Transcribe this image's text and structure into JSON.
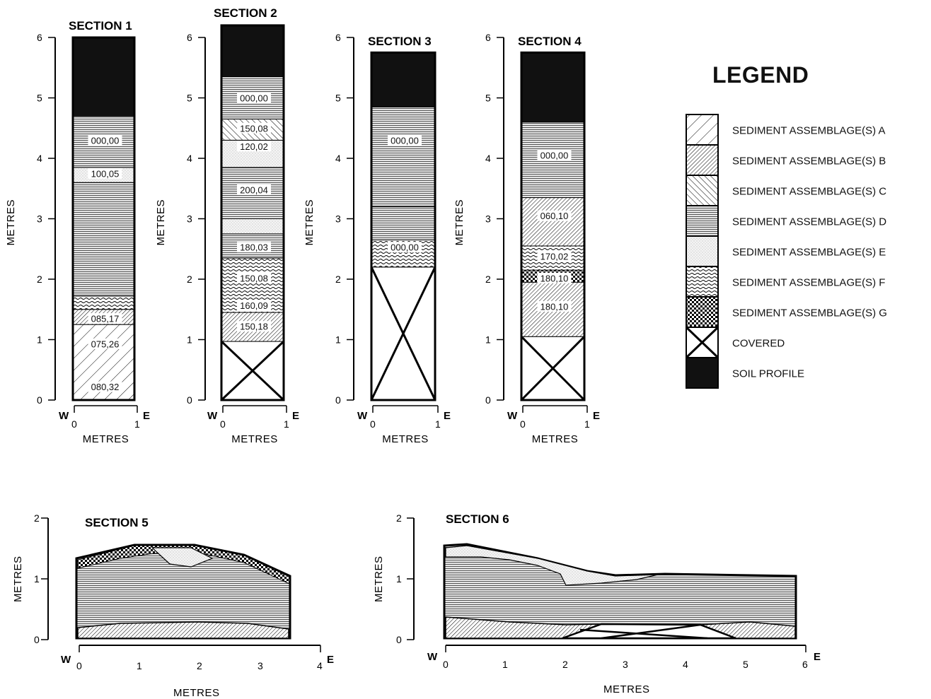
{
  "legend": {
    "title": "LEGEND",
    "items": [
      {
        "key": "A",
        "label": "SEDIMENT ASSEMBLAGE(S) A",
        "pattern": "pA"
      },
      {
        "key": "B",
        "label": "SEDIMENT ASSEMBLAGE(S) B",
        "pattern": "pB"
      },
      {
        "key": "C",
        "label": "SEDIMENT ASSEMBLAGE(S) C",
        "pattern": "pC"
      },
      {
        "key": "D",
        "label": "SEDIMENT ASSEMBLAGE(S) D",
        "pattern": "pD"
      },
      {
        "key": "E",
        "label": "SEDIMENT ASSEMBLAGE(S) E",
        "pattern": "pE"
      },
      {
        "key": "F",
        "label": "SEDIMENT ASSEMBLAGE(S) F",
        "pattern": "pF"
      },
      {
        "key": "G",
        "label": "SEDIMENT ASSEMBLAGE(S) G",
        "pattern": "pG"
      },
      {
        "key": "covered",
        "label": "COVERED",
        "pattern": "covered"
      },
      {
        "key": "soil",
        "label": "SOIL PROFILE",
        "pattern": "soil"
      }
    ]
  },
  "axis": {
    "ylabel": "METRES",
    "xlabel": "METRES",
    "west": "W",
    "east": "E"
  },
  "sections": [
    {
      "title": "SECTION 1",
      "height_m": 6,
      "y_ticks": [
        "0",
        "1",
        "2",
        "3",
        "4",
        "5",
        "6"
      ],
      "x_ticks": [
        "0",
        "1"
      ],
      "units": [
        {
          "from": 0,
          "to": 1.25,
          "unit": "A"
        },
        {
          "from": 1.25,
          "to": 1.5,
          "unit": "B"
        },
        {
          "from": 1.5,
          "to": 1.72,
          "unit": "F"
        },
        {
          "from": 1.72,
          "to": 3.6,
          "unit": "D"
        },
        {
          "from": 3.6,
          "to": 3.85,
          "unit": "E"
        },
        {
          "from": 3.85,
          "to": 4.7,
          "unit": "D"
        },
        {
          "from": 4.7,
          "to": 6.0,
          "unit": "soil"
        }
      ],
      "labels": [
        {
          "text": "080,32",
          "m": 0.22
        },
        {
          "text": "075,26",
          "m": 0.93
        },
        {
          "text": "085,17",
          "m": 1.35
        },
        {
          "text": "100,05",
          "m": 3.75
        },
        {
          "text": "000,00",
          "m": 4.3
        }
      ]
    },
    {
      "title": "SECTION 2",
      "height_m": 6,
      "y_ticks": [
        "0",
        "1",
        "2",
        "3",
        "4",
        "5",
        "6"
      ],
      "x_ticks": [
        "0",
        "1"
      ],
      "units": [
        {
          "from": 0,
          "to": 0.97,
          "unit": "covered"
        },
        {
          "from": 0.97,
          "to": 1.45,
          "unit": "B"
        },
        {
          "from": 1.45,
          "to": 2.35,
          "unit": "F"
        },
        {
          "from": 2.35,
          "to": 2.75,
          "unit": "D"
        },
        {
          "from": 2.75,
          "to": 3.0,
          "unit": "E"
        },
        {
          "from": 3.0,
          "to": 3.85,
          "unit": "D"
        },
        {
          "from": 3.85,
          "to": 4.3,
          "unit": "E"
        },
        {
          "from": 4.3,
          "to": 4.65,
          "unit": "C"
        },
        {
          "from": 4.65,
          "to": 5.35,
          "unit": "D"
        },
        {
          "from": 5.35,
          "to": 6.2,
          "unit": "soil"
        }
      ],
      "labels": [
        {
          "text": "150,18",
          "m": 1.22
        },
        {
          "text": "160,09",
          "m": 1.57
        },
        {
          "text": "150,08",
          "m": 2.02
        },
        {
          "text": "180,03",
          "m": 2.53
        },
        {
          "text": "200,04",
          "m": 3.48
        },
        {
          "text": "120,02",
          "m": 4.2
        },
        {
          "text": "150,08",
          "m": 4.5
        },
        {
          "text": "000,00",
          "m": 5.0
        }
      ]
    },
    {
      "title": "SECTION 3",
      "height_m": 6,
      "y_ticks": [
        "0",
        "1",
        "2",
        "3",
        "4",
        "5",
        "6"
      ],
      "x_ticks": [
        "0",
        "1"
      ],
      "units": [
        {
          "from": 0,
          "to": 2.2,
          "unit": "covered"
        },
        {
          "from": 2.2,
          "to": 2.65,
          "unit": "F"
        },
        {
          "from": 2.65,
          "to": 3.2,
          "unit": "D"
        },
        {
          "from": 3.2,
          "to": 4.85,
          "unit": "D"
        },
        {
          "from": 4.85,
          "to": 5.75,
          "unit": "soil"
        }
      ],
      "labels": [
        {
          "text": "000,00",
          "m": 2.53
        },
        {
          "text": "000,00",
          "m": 4.3
        }
      ]
    },
    {
      "title": "SECTION 4",
      "height_m": 6,
      "y_ticks": [
        "0",
        "1",
        "2",
        "3",
        "4",
        "5",
        "6"
      ],
      "x_ticks": [
        "0",
        "1"
      ],
      "units": [
        {
          "from": 0,
          "to": 1.05,
          "unit": "covered"
        },
        {
          "from": 1.05,
          "to": 1.95,
          "unit": "B"
        },
        {
          "from": 1.95,
          "to": 2.15,
          "unit": "G"
        },
        {
          "from": 2.15,
          "to": 2.55,
          "unit": "F"
        },
        {
          "from": 2.55,
          "to": 3.35,
          "unit": "B"
        },
        {
          "from": 3.35,
          "to": 4.6,
          "unit": "D"
        },
        {
          "from": 4.6,
          "to": 5.75,
          "unit": "soil"
        }
      ],
      "labels": [
        {
          "text": "180,10",
          "m": 1.55
        },
        {
          "text": "180,10",
          "m": 2.02
        },
        {
          "text": "170,02",
          "m": 2.38
        },
        {
          "text": "060,10",
          "m": 3.05
        },
        {
          "text": "000,00",
          "m": 4.05
        }
      ]
    },
    {
      "title": "SECTION 5",
      "height_m": 2,
      "y_ticks": [
        "0",
        "1",
        "2"
      ],
      "x_ticks": [
        "0",
        "1",
        "2",
        "3",
        "4"
      ]
    },
    {
      "title": "SECTION 6",
      "height_m": 2,
      "y_ticks": [
        "0",
        "1",
        "2"
      ],
      "x_ticks": [
        "0",
        "1",
        "2",
        "3",
        "4",
        "5",
        "6"
      ]
    }
  ]
}
